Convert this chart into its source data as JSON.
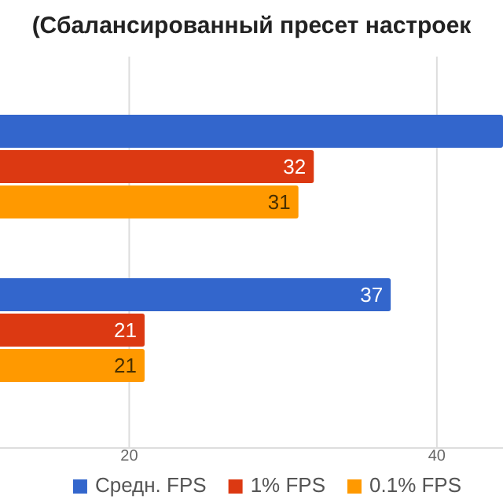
{
  "chart_data": {
    "type": "bar",
    "orientation": "horizontal",
    "title": "(Сбалансированный пресет настроек",
    "categories": [
      null,
      null
    ],
    "series": [
      {
        "name": "Средн. FPS",
        "color": "#3366cc",
        "values": [
          44.3,
          37
        ],
        "value_labels": [
          null,
          "37"
        ]
      },
      {
        "name": "1% FPS",
        "color": "#dc3912",
        "values": [
          32,
          21
        ],
        "value_labels": [
          "32",
          "21"
        ]
      },
      {
        "name": "0.1% FPS",
        "color": "#ff9900",
        "values": [
          31,
          21
        ],
        "value_labels": [
          "31",
          "21"
        ]
      }
    ],
    "xlim": [
      11.6,
      44.3
    ],
    "xticks": [
      20,
      40
    ],
    "grid": "x",
    "legend": "bottom"
  }
}
